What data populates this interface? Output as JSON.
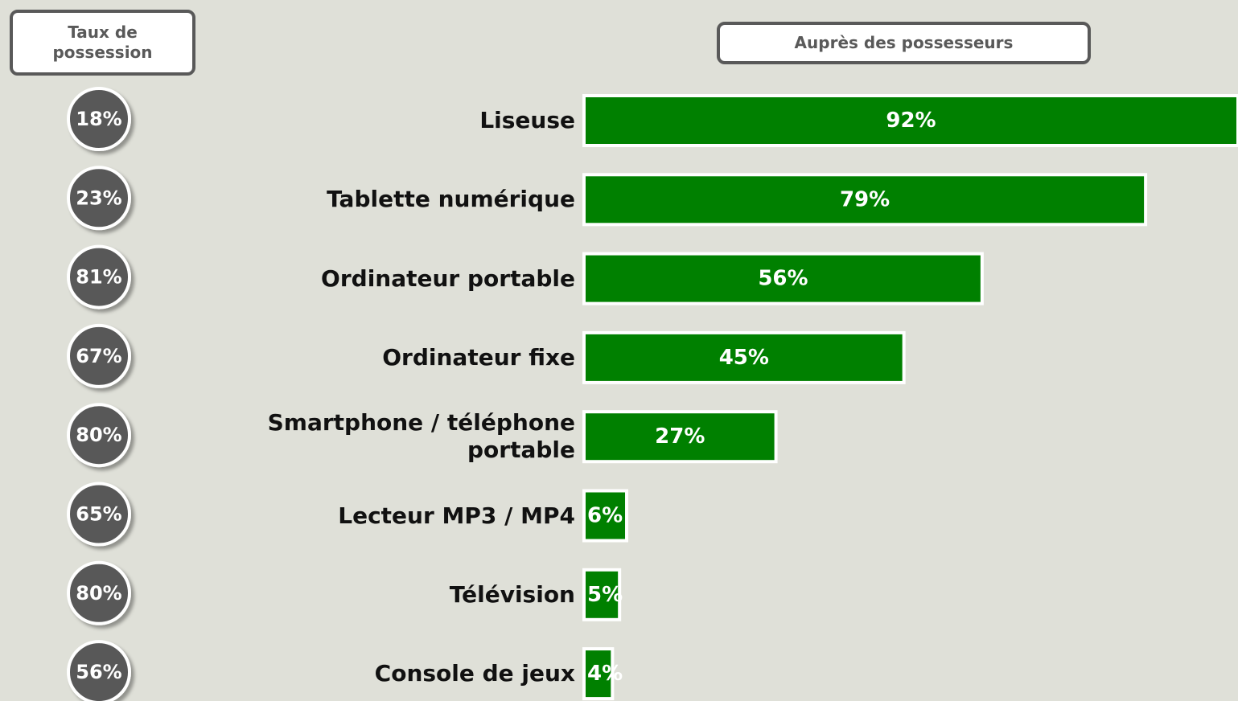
{
  "chart_data": {
    "type": "bar",
    "title": "Auprès des possesseurs",
    "categories": [
      "Liseuse",
      "Tablette numérique",
      "Ordinateur portable",
      "Ordinateur fixe",
      "Smartphone / téléphone portable",
      "Lecteur MP3 / MP4",
      "Télévision",
      "Console de jeux"
    ],
    "values": [
      92,
      79,
      56,
      45,
      27,
      6,
      5,
      4
    ],
    "value_labels": [
      "92%",
      "79%",
      "56%",
      "45%",
      "27%",
      "6%",
      "5%",
      "4%"
    ],
    "color": "#008000"
  },
  "ownership": {
    "title": "Taux de possession",
    "values": [
      18,
      23,
      81,
      67,
      80,
      65,
      80,
      56
    ],
    "value_labels": [
      "18%",
      "23%",
      "81%",
      "67%",
      "80%",
      "65%",
      "80%",
      "56%"
    ],
    "color": "#595959"
  }
}
